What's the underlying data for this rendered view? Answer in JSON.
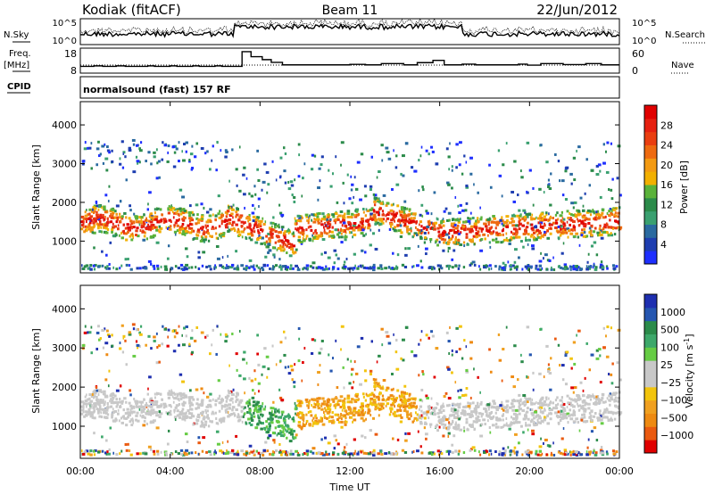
{
  "header": {
    "station": "Kodiak (fitACF)",
    "beam": "Beam 11",
    "date": "22/Jun/2012"
  },
  "chart_data": [
    {
      "type": "line",
      "panel": "noise",
      "left_label": "N.Sky",
      "right_label": "N.Search",
      "left_ticks": [
        "10^5",
        "10^0"
      ],
      "right_ticks": [
        "10^5",
        "10^0"
      ]
    },
    {
      "type": "line",
      "panel": "frequency",
      "left_label_line1": "Freq.",
      "left_label_line2": "[MHz]",
      "right_label": "Nave",
      "left_ticks": [
        "18",
        "8"
      ],
      "right_ticks": [
        "60",
        "0"
      ],
      "steps": [
        {
          "hour": 0.0,
          "freq": 10.7
        },
        {
          "hour": 0.6,
          "freq": 10.9
        },
        {
          "hour": 1.0,
          "freq": 10.7
        },
        {
          "hour": 1.6,
          "freq": 10.9
        },
        {
          "hour": 2.0,
          "freq": 10.7
        },
        {
          "hour": 3.0,
          "freq": 10.9
        },
        {
          "hour": 3.3,
          "freq": 10.7
        },
        {
          "hour": 4.0,
          "freq": 10.9
        },
        {
          "hour": 4.3,
          "freq": 10.7
        },
        {
          "hour": 5.0,
          "freq": 10.9
        },
        {
          "hour": 5.3,
          "freq": 10.7
        },
        {
          "hour": 6.0,
          "freq": 10.9
        },
        {
          "hour": 6.3,
          "freq": 10.7
        },
        {
          "hour": 7.2,
          "freq": 16.6
        },
        {
          "hour": 7.6,
          "freq": 14.6
        },
        {
          "hour": 8.1,
          "freq": 13.4
        },
        {
          "hour": 8.5,
          "freq": 12.3
        },
        {
          "hour": 9.0,
          "freq": 11.3
        },
        {
          "hour": 10.0,
          "freq": 11.3
        },
        {
          "hour": 11.0,
          "freq": 11.3
        },
        {
          "hour": 12.0,
          "freq": 11.5
        },
        {
          "hour": 12.7,
          "freq": 11.3
        },
        {
          "hour": 13.4,
          "freq": 11.8
        },
        {
          "hour": 14.4,
          "freq": 11.3
        },
        {
          "hour": 15.0,
          "freq": 12.2
        },
        {
          "hour": 15.7,
          "freq": 13.1
        },
        {
          "hour": 16.2,
          "freq": 11.3
        },
        {
          "hour": 17.0,
          "freq": 11.6
        },
        {
          "hour": 17.6,
          "freq": 11.3
        },
        {
          "hour": 19.5,
          "freq": 11.6
        },
        {
          "hour": 19.9,
          "freq": 11.2
        },
        {
          "hour": 20.5,
          "freq": 11.8
        },
        {
          "hour": 21.5,
          "freq": 11.4
        },
        {
          "hour": 22.5,
          "freq": 11.8
        },
        {
          "hour": 23.2,
          "freq": 11.3
        },
        {
          "hour": 24.0,
          "freq": 11.3
        }
      ]
    },
    {
      "type": "heatmap",
      "panel": "power",
      "cpid_label": "CPID",
      "program": "normalsound (fast) 157 RF",
      "ylabel": "Slant Range [km]",
      "yticks": [
        "4000",
        "3000",
        "2000",
        "1000"
      ],
      "ylim": [
        180,
        4600
      ],
      "colorbar_label": "Power [dB]",
      "colorbar_ticks": [
        "28",
        "24",
        "20",
        "16",
        "12",
        "8",
        "4"
      ],
      "colors": [
        "#1e2fff",
        "#1e3eb0",
        "#2a6aa0",
        "#3aa070",
        "#2b8b4a",
        "#5ab23a",
        "#f2b000",
        "#f39a12",
        "#ee6a10",
        "#ea3e10",
        "#e62010",
        "#e00000"
      ]
    },
    {
      "type": "heatmap",
      "panel": "velocity",
      "ylabel": "Slant Range [km]",
      "yticks": [
        "4000",
        "3000",
        "2000",
        "1000"
      ],
      "ylim": [
        180,
        4600
      ],
      "colorbar_label": "Velocity [m s",
      "colorbar_label_sup": "-1",
      "colorbar_label_end": "]",
      "colorbar_ticks": [
        "1000",
        "500",
        "100",
        "25",
        "−25",
        "−100",
        "−500",
        "−1000"
      ],
      "colors": [
        "#1e2fb0",
        "#2556b0",
        "#2b8b4a",
        "#3da86a",
        "#66cc44",
        "#c8c8c8",
        "#c8c8c8",
        "#f2c40c",
        "#f0a020",
        "#ee8a12",
        "#ea5a10",
        "#e00000"
      ],
      "xlabel": "Time UT",
      "xticks": [
        "00:00",
        "04:00",
        "08:00",
        "12:00",
        "16:00",
        "20:00",
        "00:00"
      ],
      "xlim": [
        0,
        24
      ]
    }
  ]
}
